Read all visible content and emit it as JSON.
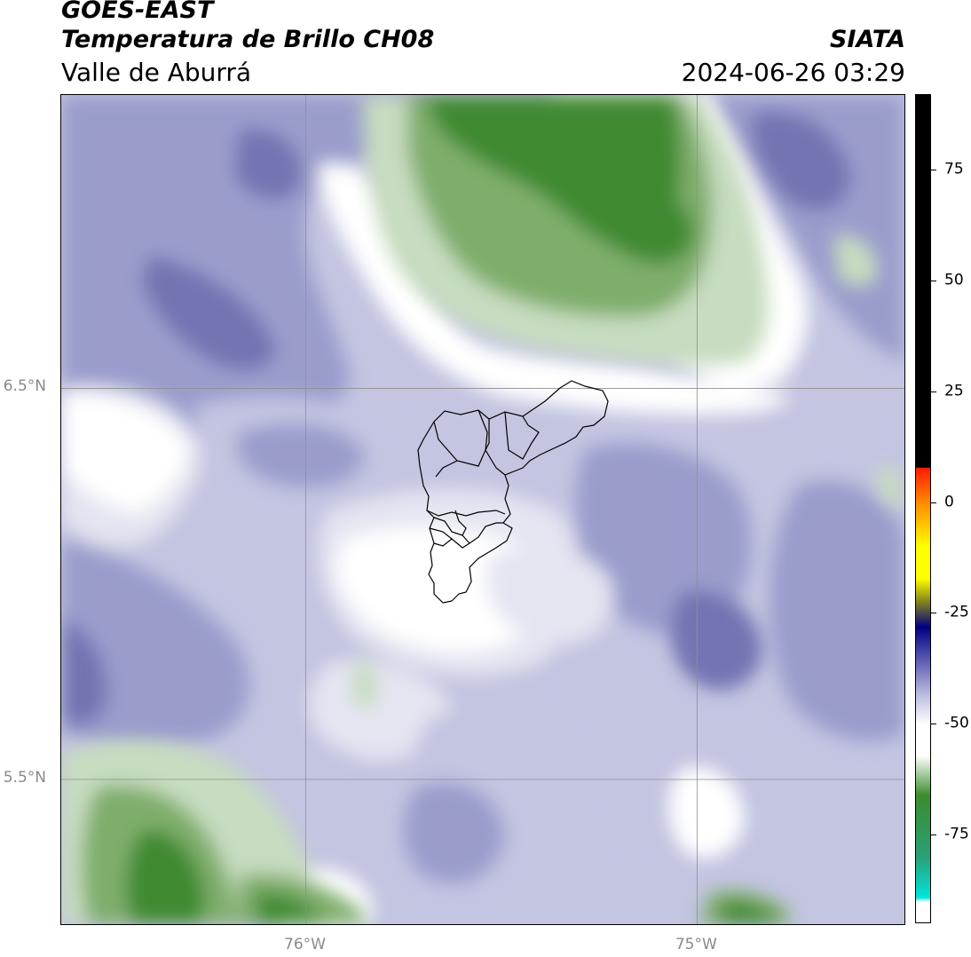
{
  "header": {
    "satellite": "GOES-EAST",
    "product": "Temperatura de Brillo CH08",
    "brand": "SIATA",
    "region": "Valle de Aburrá",
    "datetime": "2024-06-26 03:29"
  },
  "map": {
    "lon_range": [
      -76.625,
      -74.47
    ],
    "lat_range": [
      5.13,
      7.25
    ],
    "gridlines": true,
    "lat_ticks": [
      {
        "value": 6.5,
        "label": "6.5°N"
      },
      {
        "value": 5.5,
        "label": "5.5°N"
      }
    ],
    "lon_ticks": [
      {
        "value": -76.0,
        "label": "76°W"
      },
      {
        "value": -75.0,
        "label": "75°W"
      }
    ],
    "field_colors": {
      "dark_green": "#3f8a32",
      "mid_green": "#7fae6c",
      "light_green": "#c7dcc0",
      "white": "#ffffff",
      "pale_lavender": "#e4e5f1",
      "lavender": "#c3c5e1",
      "periwinkle": "#9a9dcc",
      "indigo": "#7274b2",
      "boundary": "#000000"
    }
  },
  "colorbar": {
    "range": [
      -95,
      92
    ],
    "ticks": [
      {
        "value": 75,
        "label": "75"
      },
      {
        "value": 50,
        "label": "50"
      },
      {
        "value": 25,
        "label": "25"
      },
      {
        "value": 0,
        "label": "0"
      },
      {
        "value": -25,
        "label": "-25"
      },
      {
        "value": -50,
        "label": "-50"
      },
      {
        "value": -75,
        "label": "-75"
      }
    ],
    "colors": {
      "black": "#000000",
      "red": "#ff1a00",
      "orange": "#ff8c00",
      "yellow": "#ffff00",
      "olive": "#8a8a1a",
      "navy": "#000080",
      "indigo": "#4a4aa8",
      "lavender": "#b8b9dc",
      "white": "#ffffff",
      "green": "#3c8c2c",
      "teal": "#2aa078",
      "cyan": "#00e5dc"
    }
  }
}
